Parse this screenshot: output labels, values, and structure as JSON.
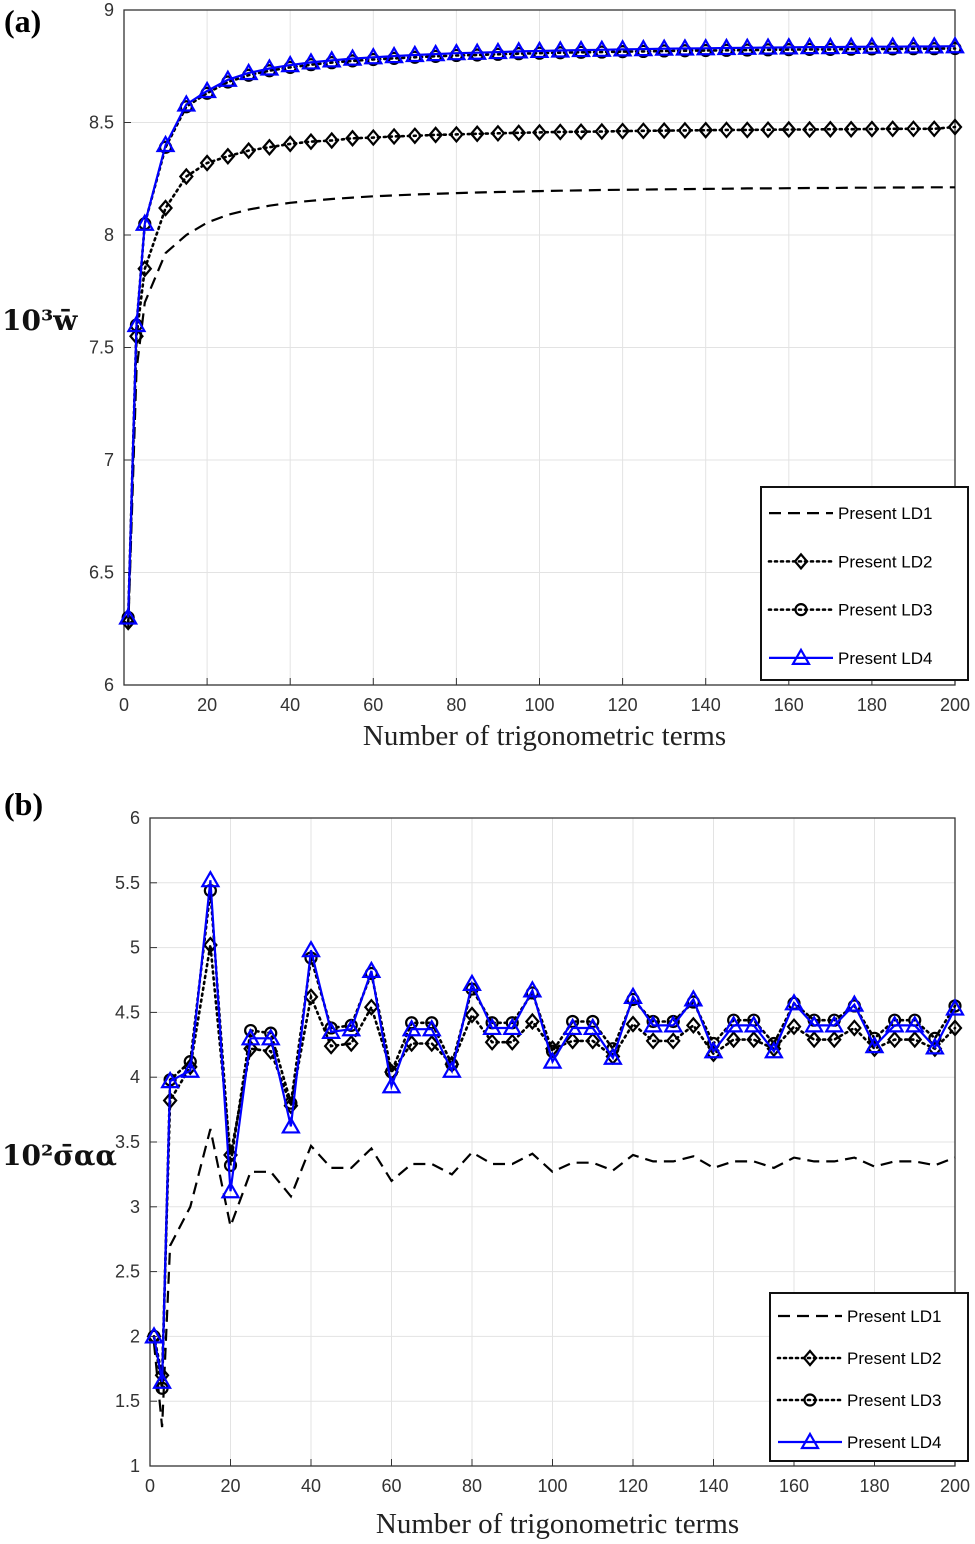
{
  "chart_data": [
    {
      "type": "line",
      "panel_label": "(a)",
      "xlabel": "Number of trigonometric terms",
      "ylabel": "10³w̄",
      "xlim": [
        0,
        200
      ],
      "ylim": [
        6,
        9
      ],
      "xticks": [
        "0",
        "20",
        "40",
        "60",
        "80",
        "100",
        "120",
        "140",
        "160",
        "180",
        "200"
      ],
      "yticks": [
        "6",
        "6.5",
        "7",
        "7.5",
        "8",
        "8.5",
        "9"
      ],
      "grid": true,
      "legend_position": "bottom-right",
      "x": [
        1,
        3,
        5,
        10,
        15,
        20,
        25,
        30,
        35,
        40,
        45,
        50,
        55,
        60,
        65,
        70,
        75,
        80,
        85,
        90,
        95,
        100,
        105,
        110,
        115,
        120,
        125,
        130,
        135,
        140,
        145,
        150,
        155,
        160,
        165,
        170,
        175,
        180,
        185,
        190,
        195,
        200
      ],
      "series": [
        {
          "name": "Present LD1",
          "style": "dashed",
          "marker": "none",
          "color": "#000000",
          "values": [
            6.25,
            7.4,
            7.7,
            7.92,
            8.0,
            8.055,
            8.09,
            8.113,
            8.13,
            8.143,
            8.152,
            8.16,
            8.166,
            8.172,
            8.176,
            8.18,
            8.183,
            8.186,
            8.189,
            8.191,
            8.193,
            8.195,
            8.197,
            8.198,
            8.2,
            8.201,
            8.202,
            8.203,
            8.204,
            8.205,
            8.206,
            8.207,
            8.207,
            8.208,
            8.209,
            8.209,
            8.21,
            8.21,
            8.211,
            8.211,
            8.212,
            8.212
          ]
        },
        {
          "name": "Present LD2",
          "style": "dotted",
          "marker": "diamond",
          "color": "#000000",
          "values": [
            6.28,
            7.55,
            7.85,
            8.12,
            8.26,
            8.32,
            8.35,
            8.375,
            8.39,
            8.405,
            8.415,
            8.42,
            8.43,
            8.433,
            8.438,
            8.441,
            8.445,
            8.447,
            8.45,
            8.452,
            8.454,
            8.456,
            8.458,
            8.459,
            8.46,
            8.462,
            8.463,
            8.464,
            8.465,
            8.466,
            8.467,
            8.467,
            8.468,
            8.469,
            8.469,
            8.47,
            8.47,
            8.471,
            8.472,
            8.472,
            8.472,
            8.48
          ]
        },
        {
          "name": "Present LD3",
          "style": "dotted",
          "marker": "circle",
          "color": "#000000",
          "values": [
            6.3,
            7.6,
            8.05,
            8.39,
            8.57,
            8.63,
            8.68,
            8.71,
            8.73,
            8.745,
            8.757,
            8.766,
            8.774,
            8.78,
            8.785,
            8.79,
            8.794,
            8.798,
            8.8,
            8.803,
            8.806,
            8.808,
            8.81,
            8.812,
            8.813,
            8.815,
            8.816,
            8.818,
            8.819,
            8.82,
            8.821,
            8.822,
            8.823,
            8.824,
            8.825,
            8.825,
            8.826,
            8.827,
            8.827,
            8.828,
            8.828,
            8.829
          ]
        },
        {
          "name": "Present LD4",
          "style": "solid",
          "marker": "triangle",
          "color": "#0000ff",
          "values": [
            6.3,
            7.6,
            8.05,
            8.4,
            8.58,
            8.64,
            8.69,
            8.72,
            8.74,
            8.755,
            8.767,
            8.776,
            8.784,
            8.79,
            8.795,
            8.8,
            8.804,
            8.808,
            8.81,
            8.813,
            8.816,
            8.818,
            8.82,
            8.822,
            8.823,
            8.825,
            8.826,
            8.828,
            8.829,
            8.83,
            8.831,
            8.832,
            8.833,
            8.834,
            8.835,
            8.835,
            8.836,
            8.837,
            8.837,
            8.838,
            8.838,
            8.839
          ]
        }
      ]
    },
    {
      "type": "line",
      "panel_label": "(b)",
      "xlabel": "Number of trigonometric terms",
      "ylabel": "10²σ̄αα",
      "xlim": [
        0,
        200
      ],
      "ylim": [
        1,
        6
      ],
      "xticks": [
        "0",
        "20",
        "40",
        "60",
        "80",
        "100",
        "120",
        "140",
        "160",
        "180",
        "200"
      ],
      "yticks": [
        "1",
        "1.5",
        "2",
        "2.5",
        "3",
        "3.5",
        "4",
        "4.5",
        "5",
        "5.5",
        "6"
      ],
      "grid": true,
      "legend_position": "bottom-right",
      "x": [
        1,
        3,
        5,
        10,
        15,
        20,
        25,
        30,
        35,
        40,
        45,
        50,
        55,
        60,
        65,
        70,
        75,
        80,
        85,
        90,
        95,
        100,
        105,
        110,
        115,
        120,
        125,
        130,
        135,
        140,
        145,
        150,
        155,
        160,
        165,
        170,
        175,
        180,
        185,
        190,
        195,
        200
      ],
      "series": [
        {
          "name": "Present LD1",
          "style": "dashed",
          "marker": "none",
          "color": "#000000",
          "values": [
            1.95,
            1.3,
            2.7,
            3.0,
            3.6,
            2.85,
            3.27,
            3.27,
            3.08,
            3.47,
            3.3,
            3.3,
            3.45,
            3.2,
            3.33,
            3.33,
            3.25,
            3.42,
            3.33,
            3.33,
            3.41,
            3.27,
            3.34,
            3.34,
            3.28,
            3.4,
            3.35,
            3.35,
            3.39,
            3.3,
            3.35,
            3.35,
            3.3,
            3.38,
            3.35,
            3.35,
            3.38,
            3.31,
            3.35,
            3.35,
            3.32,
            3.38
          ]
        },
        {
          "name": "Present LD2",
          "style": "dotted",
          "marker": "diamond",
          "color": "#000000",
          "values": [
            2.0,
            1.7,
            3.82,
            4.08,
            5.02,
            3.4,
            4.22,
            4.2,
            3.78,
            4.62,
            4.24,
            4.26,
            4.54,
            4.04,
            4.26,
            4.26,
            4.1,
            4.48,
            4.27,
            4.27,
            4.43,
            4.22,
            4.28,
            4.28,
            4.16,
            4.41,
            4.28,
            4.28,
            4.4,
            4.18,
            4.29,
            4.29,
            4.22,
            4.39,
            4.29,
            4.29,
            4.38,
            4.22,
            4.29,
            4.29,
            4.22,
            4.38
          ]
        },
        {
          "name": "Present LD3",
          "style": "dotted",
          "marker": "circle",
          "color": "#000000",
          "values": [
            2.0,
            1.6,
            3.98,
            4.12,
            5.44,
            3.32,
            4.36,
            4.34,
            3.8,
            4.92,
            4.38,
            4.4,
            4.8,
            4.04,
            4.42,
            4.42,
            4.1,
            4.68,
            4.42,
            4.42,
            4.65,
            4.2,
            4.43,
            4.43,
            4.22,
            4.6,
            4.43,
            4.43,
            4.58,
            4.26,
            4.44,
            4.44,
            4.26,
            4.57,
            4.44,
            4.44,
            4.55,
            4.3,
            4.44,
            4.44,
            4.3,
            4.55
          ]
        },
        {
          "name": "Present LD4",
          "style": "solid",
          "marker": "triangle",
          "color": "#0000ff",
          "values": [
            2.0,
            1.65,
            3.97,
            4.05,
            5.52,
            3.12,
            4.3,
            4.3,
            3.62,
            4.98,
            4.35,
            4.37,
            4.82,
            3.93,
            4.37,
            4.37,
            4.05,
            4.72,
            4.38,
            4.38,
            4.67,
            4.12,
            4.38,
            4.38,
            4.15,
            4.62,
            4.4,
            4.4,
            4.6,
            4.2,
            4.4,
            4.4,
            4.2,
            4.57,
            4.4,
            4.4,
            4.56,
            4.24,
            4.4,
            4.4,
            4.23,
            4.53
          ]
        }
      ]
    }
  ]
}
